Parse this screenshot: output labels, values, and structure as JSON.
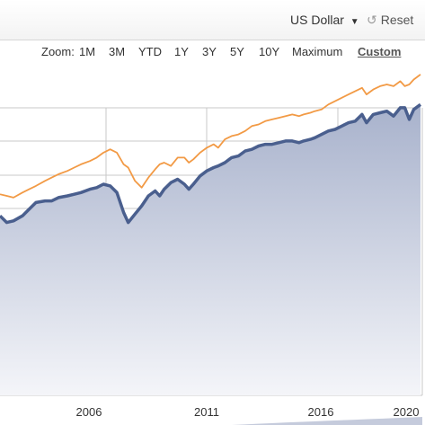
{
  "toolbar": {
    "currency_label": "US Dollar",
    "currency_caret": "▼",
    "reset_label": "Reset",
    "reset_icon": "undo-icon"
  },
  "zoom": {
    "label": "Zoom:",
    "options": [
      "1M",
      "3M",
      "YTD",
      "1Y",
      "3Y",
      "5Y",
      "10Y",
      "Maximum",
      "Custom"
    ],
    "active": "Custom"
  },
  "colors": {
    "navy_line": "#4a5f8e",
    "navy_fill_top": "#a8b2cc",
    "navy_fill_bottom": "#f4f5f9",
    "orange_line": "#f29a45",
    "grid": "#c8c8c8",
    "navigator_fill": "#c5cbdc"
  },
  "chart_data": {
    "type": "area",
    "x_ticks": [
      "2006",
      "2011",
      "2016",
      "2020"
    ],
    "xlim": [
      2002.0,
      2020.7
    ],
    "ylim": [
      0,
      100
    ],
    "grid": true,
    "series": [
      {
        "type": "line",
        "color": "#f29a45",
        "x": [
          2002.0,
          2002.3,
          2002.6,
          2003.0,
          2003.3,
          2003.6,
          2004.0,
          2004.3,
          2004.6,
          2005.0,
          2005.3,
          2005.6,
          2006.0,
          2006.3,
          2006.6,
          2006.9,
          2007.2,
          2007.5,
          2007.7,
          2008.0,
          2008.3,
          2008.6,
          2008.9,
          2009.1,
          2009.3,
          2009.6,
          2009.9,
          2010.2,
          2010.4,
          2010.6,
          2010.9,
          2011.2,
          2011.5,
          2011.7,
          2012.0,
          2012.3,
          2012.6,
          2012.9,
          2013.2,
          2013.5,
          2013.8,
          2014.1,
          2014.4,
          2014.7,
          2015.0,
          2015.3,
          2015.5,
          2015.8,
          2016.0,
          2016.3,
          2016.6,
          2016.9,
          2017.2,
          2017.5,
          2017.8,
          2018.1,
          2018.3,
          2018.6,
          2018.9,
          2019.2,
          2019.5,
          2019.8,
          2020.0,
          2020.2,
          2020.4,
          2020.7
        ],
        "y": [
          60.5,
          60.0,
          59.5,
          61.0,
          62.0,
          63.0,
          64.5,
          65.5,
          66.5,
          67.5,
          68.5,
          69.5,
          70.5,
          71.5,
          73.0,
          74.0,
          73.0,
          69.5,
          68.5,
          64.5,
          62.5,
          65.5,
          68.0,
          69.5,
          70.0,
          69.0,
          71.5,
          71.5,
          70.0,
          71.0,
          73.0,
          74.5,
          75.5,
          74.5,
          77.0,
          78.0,
          78.5,
          79.5,
          81.0,
          81.5,
          82.5,
          83.0,
          83.5,
          84.0,
          84.5,
          84.0,
          84.5,
          85.0,
          85.5,
          86.0,
          87.5,
          88.5,
          89.5,
          90.5,
          91.5,
          92.5,
          90.5,
          92.0,
          93.0,
          93.5,
          93.0,
          94.5,
          93.0,
          93.5,
          95.0,
          96.5
        ]
      },
      {
        "type": "area",
        "color": "#4a5f8e",
        "x": [
          2002.0,
          2002.3,
          2002.6,
          2003.0,
          2003.3,
          2003.6,
          2004.0,
          2004.3,
          2004.6,
          2005.0,
          2005.3,
          2005.6,
          2006.0,
          2006.3,
          2006.6,
          2006.9,
          2007.2,
          2007.5,
          2007.7,
          2008.0,
          2008.3,
          2008.6,
          2008.9,
          2009.1,
          2009.3,
          2009.6,
          2009.9,
          2010.2,
          2010.4,
          2010.6,
          2010.9,
          2011.2,
          2011.5,
          2011.7,
          2012.0,
          2012.3,
          2012.6,
          2012.9,
          2013.2,
          2013.5,
          2013.8,
          2014.1,
          2014.4,
          2014.7,
          2015.0,
          2015.3,
          2015.5,
          2015.8,
          2016.0,
          2016.3,
          2016.6,
          2016.9,
          2017.2,
          2017.5,
          2017.8,
          2018.1,
          2018.3,
          2018.6,
          2018.9,
          2019.2,
          2019.5,
          2019.8,
          2020.0,
          2020.2,
          2020.4,
          2020.7
        ],
        "y": [
          54.0,
          52.0,
          52.5,
          54.0,
          56.0,
          58.0,
          58.5,
          58.5,
          59.5,
          60.0,
          60.5,
          61.0,
          62.0,
          62.5,
          63.5,
          63.0,
          61.0,
          55.0,
          52.0,
          54.5,
          57.0,
          60.0,
          61.5,
          60.0,
          62.0,
          64.0,
          65.0,
          63.5,
          62.0,
          63.5,
          66.0,
          67.5,
          68.5,
          69.0,
          70.0,
          71.5,
          72.0,
          73.5,
          74.0,
          75.0,
          75.5,
          75.5,
          76.0,
          76.5,
          76.5,
          76.0,
          76.5,
          77.0,
          77.5,
          78.5,
          79.5,
          80.0,
          81.0,
          82.0,
          82.5,
          84.5,
          82.0,
          84.5,
          85.0,
          85.5,
          84.0,
          86.5,
          86.5,
          83.0,
          86.0,
          87.5
        ]
      }
    ]
  }
}
